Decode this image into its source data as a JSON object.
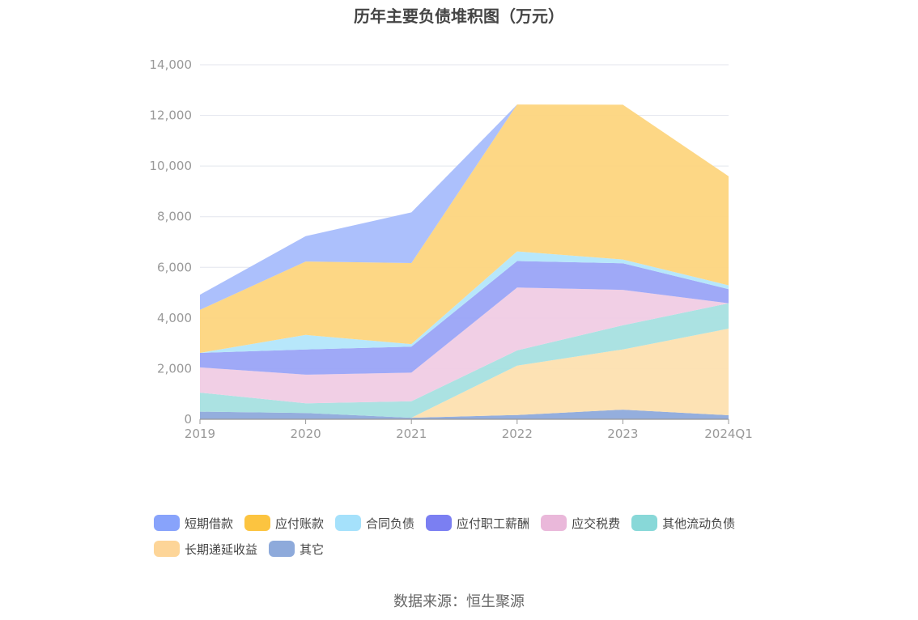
{
  "chart_data": {
    "type": "area",
    "stacked": true,
    "title": "历年主要负债堆积图（万元）",
    "xlabel": "",
    "ylabel": "",
    "categories": [
      "2019",
      "2020",
      "2021",
      "2022",
      "2023",
      "2024Q1"
    ],
    "ylim": [
      0,
      14000
    ],
    "yticks": [
      "0",
      "2,000",
      "4,000",
      "6,000",
      "8,000",
      "10,000",
      "12,000",
      "14,000"
    ],
    "grid": true,
    "legend_position": "bottom",
    "series": [
      {
        "name": "其它",
        "color": "#8eaadb",
        "values": [
          300,
          250,
          60,
          170,
          380,
          160
        ]
      },
      {
        "name": "长期递延收益",
        "color": "#fde0b0",
        "values": [
          0,
          0,
          0,
          1950,
          2380,
          3420
        ]
      },
      {
        "name": "其他流动负债",
        "color": "#a6e0e0",
        "values": [
          750,
          380,
          650,
          600,
          950,
          1000
        ]
      },
      {
        "name": "应交税费",
        "color": "#f0cce4",
        "values": [
          1000,
          1130,
          1130,
          2480,
          1400,
          0
        ]
      },
      {
        "name": "应付职工薪酬",
        "color": "#9aa4f7",
        "values": [
          570,
          1000,
          1030,
          1050,
          1050,
          560
        ]
      },
      {
        "name": "合同负债",
        "color": "#b3e6fb",
        "values": [
          0,
          570,
          100,
          380,
          150,
          150
        ]
      },
      {
        "name": "应付账款",
        "color": "#fdd57e",
        "values": [
          1700,
          2900,
          3200,
          5800,
          6110,
          4310
        ]
      },
      {
        "name": "短期借款",
        "color": "#a8bdfc",
        "values": [
          600,
          1000,
          2000,
          0,
          0,
          0
        ]
      }
    ]
  },
  "legend": {
    "row1": [
      {
        "name": "短期借款",
        "color": "#88a3fb"
      },
      {
        "name": "应付账款",
        "color": "#fcc440"
      },
      {
        "name": "合同负债",
        "color": "#a5e1fb"
      },
      {
        "name": "应付职工薪酬",
        "color": "#7b7ff2"
      },
      {
        "name": "应交税费",
        "color": "#eab8da"
      },
      {
        "name": "其他流动负债",
        "color": "#88d8d8"
      }
    ],
    "row2": [
      {
        "name": "长期递延收益",
        "color": "#fdd598"
      },
      {
        "name": "其它",
        "color": "#8eaadb"
      }
    ]
  },
  "source_note": "数据来源：恒生聚源"
}
